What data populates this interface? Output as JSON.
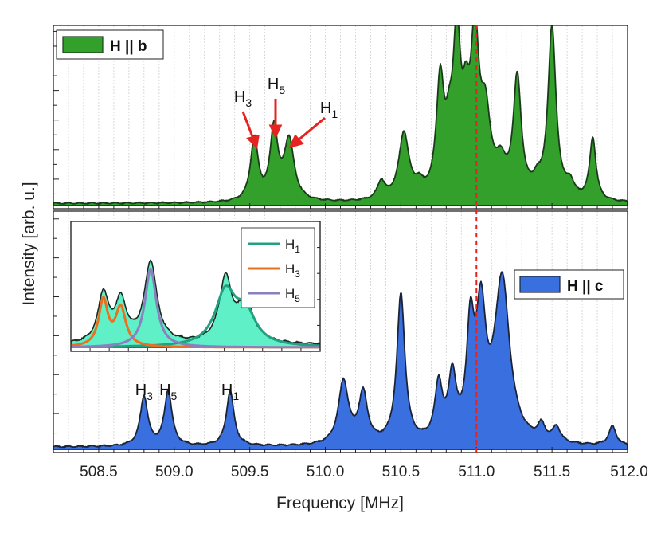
{
  "chart_data": {
    "type": "area",
    "title": "",
    "xlabel": "Frequency [MHz]",
    "ylabel": "Intensity [arb. u.]",
    "xlim": [
      508.2,
      512.0
    ],
    "xticks": [
      {
        "value": 508.5,
        "label": "508.5"
      },
      {
        "value": 509.0,
        "label": "509.0"
      },
      {
        "value": 509.5,
        "label": "509.5"
      },
      {
        "value": 510.0,
        "label": "510.0"
      },
      {
        "value": 510.5,
        "label": "510.5"
      },
      {
        "value": 511.0,
        "label": "511.0"
      },
      {
        "value": 511.5,
        "label": "511.5"
      },
      {
        "value": 512.0,
        "label": "512.0"
      }
    ],
    "reference_line": {
      "x": 511.0,
      "color": "#e52421",
      "style": "dashed"
    },
    "panels": [
      {
        "id": "top",
        "legend": {
          "label": "H || b",
          "location": "top-left"
        },
        "fill_color": "#33a02c",
        "line_color": "#1b3a1b",
        "ylim": [
          0,
          1.05
        ],
        "peaks": [
          {
            "x": 509.53,
            "height": 0.36,
            "width": 0.03
          },
          {
            "x": 509.66,
            "height": 0.41,
            "width": 0.03
          },
          {
            "x": 509.76,
            "height": 0.35,
            "width": 0.04
          },
          {
            "x": 510.37,
            "height": 0.1,
            "width": 0.03
          },
          {
            "x": 510.52,
            "height": 0.38,
            "width": 0.04
          },
          {
            "x": 510.62,
            "height": 0.06,
            "width": 0.03
          },
          {
            "x": 510.76,
            "height": 0.64,
            "width": 0.03
          },
          {
            "x": 510.82,
            "height": 0.24,
            "width": 0.03
          },
          {
            "x": 510.87,
            "height": 0.85,
            "width": 0.03
          },
          {
            "x": 510.93,
            "height": 0.37,
            "width": 0.03
          },
          {
            "x": 510.99,
            "height": 0.86,
            "width": 0.032
          },
          {
            "x": 511.06,
            "height": 0.43,
            "width": 0.04
          },
          {
            "x": 511.16,
            "height": 0.16,
            "width": 0.04
          },
          {
            "x": 511.27,
            "height": 0.68,
            "width": 0.032
          },
          {
            "x": 511.4,
            "height": 0.07,
            "width": 0.03
          },
          {
            "x": 511.5,
            "height": 0.99,
            "width": 0.032
          },
          {
            "x": 511.62,
            "height": 0.08,
            "width": 0.03
          },
          {
            "x": 511.77,
            "height": 0.36,
            "width": 0.025
          }
        ],
        "annotations": [
          {
            "label": "H",
            "sub": "3",
            "x": 509.53
          },
          {
            "label": "H",
            "sub": "5",
            "x": 509.66
          },
          {
            "label": "H",
            "sub": "1",
            "x": 509.76
          }
        ]
      },
      {
        "id": "bottom",
        "legend": {
          "label": "H || c",
          "location": "top-right"
        },
        "fill_color": "#3a6fe0",
        "line_color": "#1a2438",
        "ylim": [
          0,
          1.05
        ],
        "peaks": [
          {
            "x": 508.8,
            "height": 0.26,
            "width": 0.03
          },
          {
            "x": 508.96,
            "height": 0.29,
            "width": 0.03
          },
          {
            "x": 509.37,
            "height": 0.29,
            "width": 0.03
          },
          {
            "x": 510.12,
            "height": 0.33,
            "width": 0.04
          },
          {
            "x": 510.25,
            "height": 0.26,
            "width": 0.035
          },
          {
            "x": 510.5,
            "height": 0.78,
            "width": 0.032
          },
          {
            "x": 510.75,
            "height": 0.29,
            "width": 0.03
          },
          {
            "x": 510.84,
            "height": 0.32,
            "width": 0.03
          },
          {
            "x": 510.96,
            "height": 0.53,
            "width": 0.03
          },
          {
            "x": 511.03,
            "height": 0.63,
            "width": 0.04
          },
          {
            "x": 511.17,
            "height": 0.85,
            "width": 0.06
          },
          {
            "x": 511.43,
            "height": 0.08,
            "width": 0.03
          },
          {
            "x": 511.53,
            "height": 0.08,
            "width": 0.03
          },
          {
            "x": 511.9,
            "height": 0.1,
            "width": 0.03
          }
        ],
        "annotations": [
          {
            "label": "H",
            "sub": "3",
            "x": 508.8
          },
          {
            "label": "H",
            "sub": "5",
            "x": 508.96
          },
          {
            "label": "H",
            "sub": "1",
            "x": 509.37
          }
        ]
      }
    ],
    "inset": {
      "fill_color": "#5ff0c8",
      "line_color": "#1a2a22",
      "envelope_peaks": [
        {
          "x": 0.13,
          "height": 0.58,
          "width": 0.025
        },
        {
          "x": 0.2,
          "height": 0.49,
          "width": 0.028
        },
        {
          "x": 0.32,
          "height": 0.97,
          "width": 0.03
        },
        {
          "x": 0.62,
          "height": 0.75,
          "width": 0.03
        },
        {
          "x": 0.7,
          "height": 0.47,
          "width": 0.04
        }
      ],
      "series": [
        {
          "name": "H1",
          "label": "H",
          "sub": "1",
          "color": "#22a080",
          "peaks": [
            {
              "x": 0.62,
              "height": 0.63,
              "width": 0.05
            },
            {
              "x": 0.7,
              "height": 0.37,
              "width": 0.05
            }
          ]
        },
        {
          "name": "H3",
          "label": "H",
          "sub": "3",
          "color": "#e87020",
          "peaks": [
            {
              "x": 0.13,
              "height": 0.55,
              "width": 0.022
            },
            {
              "x": 0.2,
              "height": 0.46,
              "width": 0.025
            }
          ]
        },
        {
          "name": "H5",
          "label": "H",
          "sub": "5",
          "color": "#8a80c0",
          "peaks": [
            {
              "x": 0.32,
              "height": 0.93,
              "width": 0.028
            }
          ]
        }
      ]
    }
  }
}
